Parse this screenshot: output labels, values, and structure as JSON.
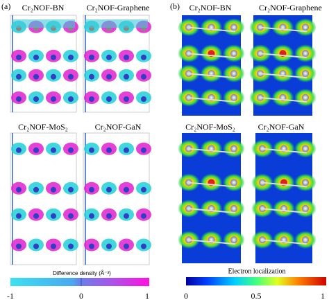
{
  "panels": [
    {
      "label": "(a)",
      "titles": [
        "Cr₂NOF-BN",
        "Cr₂NOF-Graphene",
        "Cr₂NOF-MoS₂",
        "Cr₂NOF-GaN"
      ],
      "colorbar": {
        "label": "Difference density (Å⁻³)",
        "ticks": [
          "-1",
          "0",
          "1"
        ]
      }
    },
    {
      "label": "(b)",
      "titles": [
        "Cr₂NOF-BN",
        "Cr₂NOF-Graphene",
        "Cr₂NOF-MoS₂",
        "Cr₂NOF-GaN"
      ],
      "colorbar": {
        "label": "Electron localization",
        "ticks": [
          "0",
          "0.5",
          "1"
        ]
      }
    }
  ]
}
